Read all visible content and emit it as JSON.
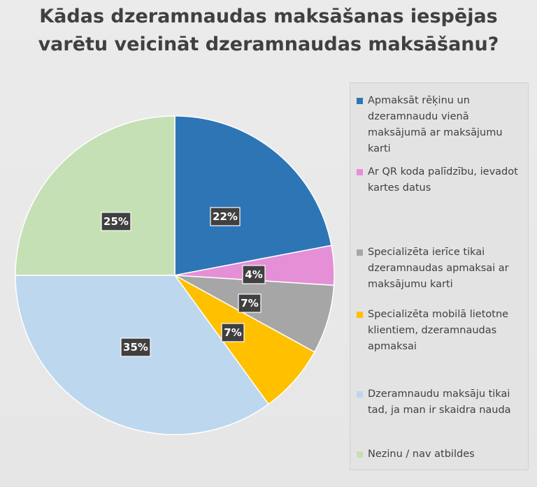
{
  "chart_data": {
    "type": "pie",
    "title": [
      "Kādas dzeramnaudas maksāšanas iespējas",
      "varētu veicināt dzeramnaudas maksāšanu?"
    ],
    "slices": [
      {
        "label": "Apmaksāt rēķinu un dzeramnaudu vienā maksājumā ar maksājumu karti",
        "value": 22,
        "display": "22%",
        "color": "#2e75b6"
      },
      {
        "label": "Ar QR koda palīdzību, ievadot kartes datus",
        "value": 4,
        "display": "4%",
        "color": "#e58fd6"
      },
      {
        "label": "Specializēta ierīce tikai dzeramnaudas apmaksai ar maksājumu karti",
        "value": 7,
        "display": "7%",
        "color": "#a6a6a6"
      },
      {
        "label": "Specializēta mobilā lietotne klientiem, dzeramnaudas apmaksai",
        "value": 7,
        "display": "7%",
        "color": "#ffc000"
      },
      {
        "label": "Dzeramnaudu maksāju tikai tad, ja man ir skaidra nauda",
        "value": 35,
        "display": "35%",
        "color": "#bdd7ee"
      },
      {
        "label": "Nezinu / nav atbildes",
        "value": 25,
        "display": "25%",
        "color": "#c5e0b4"
      }
    ],
    "legend_position": "right"
  }
}
